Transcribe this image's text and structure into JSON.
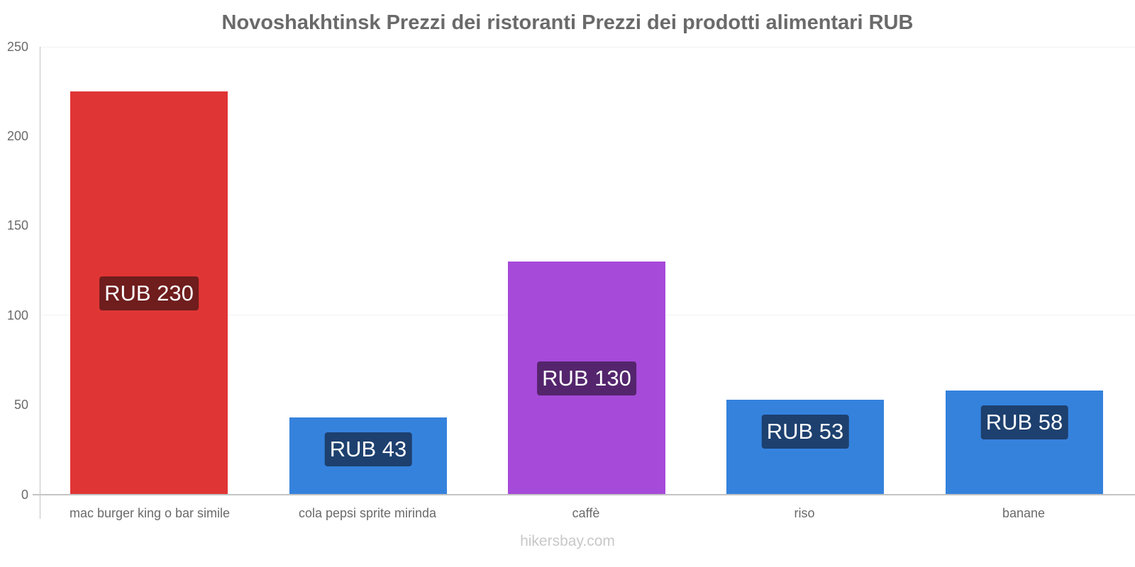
{
  "title": "Novoshakhtinsk Prezzi dei ristoranti Prezzi dei prodotti alimentari RUB",
  "footer": "hikersbay.com",
  "chart_data": {
    "type": "bar",
    "title": "Novoshakhtinsk Prezzi dei ristoranti Prezzi dei prodotti alimentari RUB",
    "xlabel": "",
    "ylabel": "",
    "ylim": [
      0,
      250
    ],
    "yticks": [
      "0",
      "50",
      "100",
      "150",
      "200",
      "250"
    ],
    "grid": true,
    "legend": "none",
    "categories": [
      "mac burger king o bar simile",
      "cola pepsi sprite mirinda",
      "caffè",
      "riso",
      "banane"
    ],
    "values": [
      230,
      43,
      130,
      53,
      58
    ],
    "labels": [
      "RUB 230",
      "RUB 43",
      "RUB 130",
      "RUB 53",
      "RUB 58"
    ],
    "colors": [
      "#e03535",
      "#3582dd",
      "#a64ad9",
      "#3582dd",
      "#3582dd"
    ],
    "label_colors": [
      "#6f1d1d",
      "#1d406f",
      "#54256d",
      "#1d406f",
      "#1d406f"
    ]
  }
}
